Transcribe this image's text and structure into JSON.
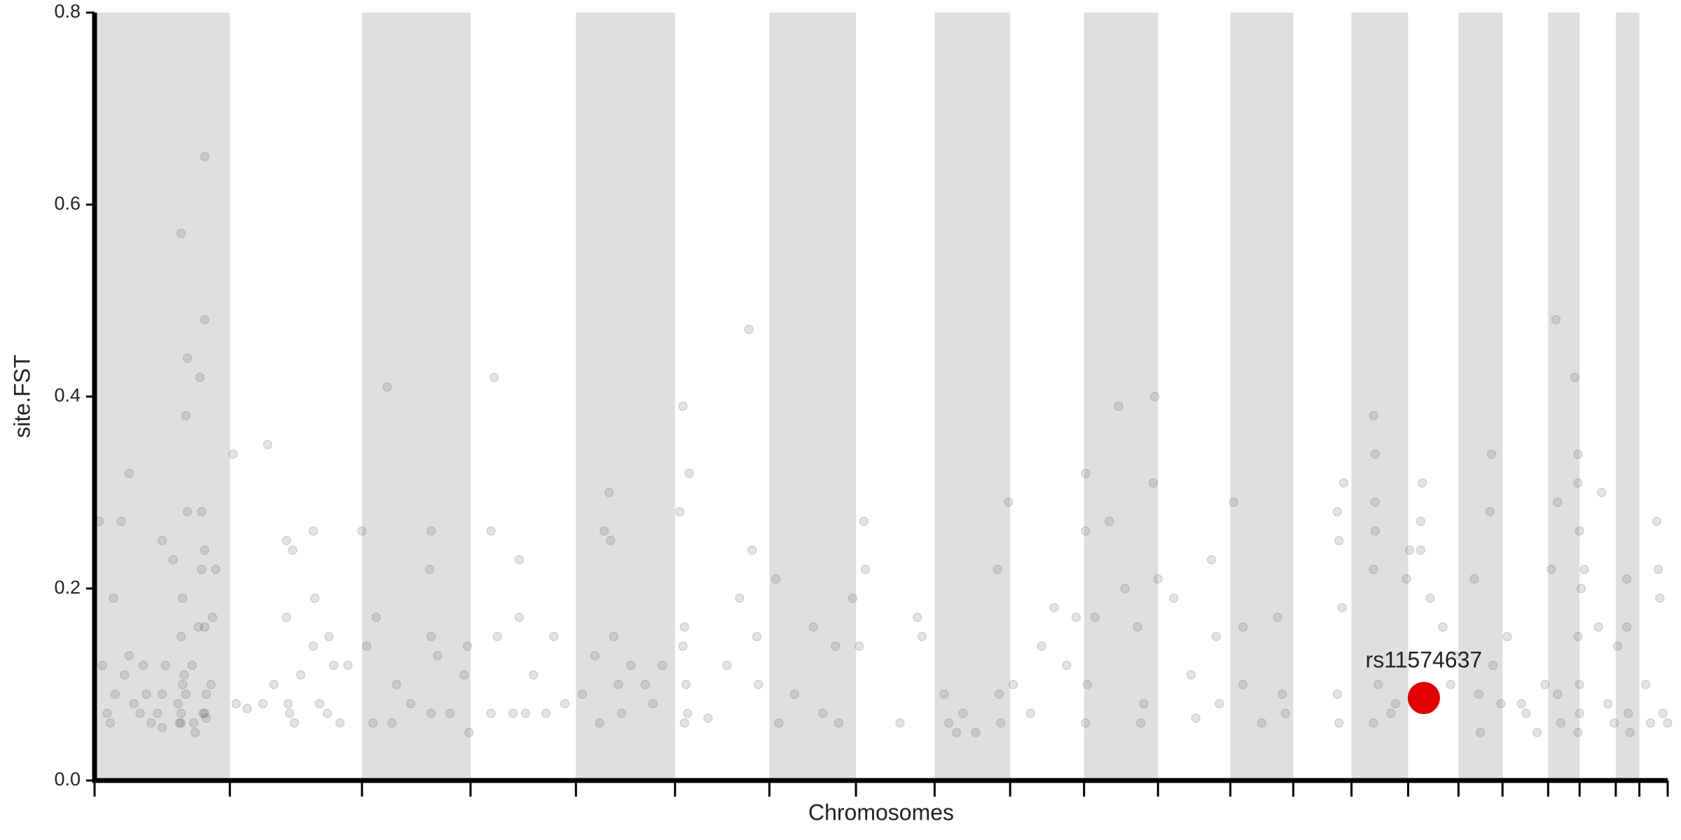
{
  "chart_data": {
    "type": "scatter",
    "y_label": "site.FST",
    "x_label": "Chromosomes",
    "xlim": [
      0,
      100
    ],
    "ylim": [
      0,
      0.8
    ],
    "yticks": [
      {
        "value": 0,
        "label": "0.0"
      },
      0.2,
      0.4,
      0.6,
      0.8
    ],
    "xticks": [
      0,
      8.6,
      17.0,
      23.9,
      30.6,
      36.9,
      42.9,
      48.4,
      53.4,
      58.2,
      62.9,
      67.6,
      72.2,
      76.2,
      79.9,
      83.5,
      86.7,
      89.5,
      92.4,
      94.4,
      96.7,
      98.2,
      100
    ],
    "bands": [
      [
        0,
        8.6
      ],
      [
        17.0,
        23.9
      ],
      [
        30.6,
        36.9
      ],
      [
        42.9,
        48.4
      ],
      [
        53.4,
        58.2
      ],
      [
        62.9,
        67.6
      ],
      [
        72.2,
        76.2
      ],
      [
        79.9,
        83.5
      ],
      [
        86.7,
        89.5
      ],
      [
        92.4,
        94.4
      ],
      [
        96.7,
        98.2
      ]
    ],
    "band_color": "#dfdfdf",
    "color": "#505050",
    "x": [
      0.3,
      0.5,
      0.8,
      1.0,
      1.2,
      1.3,
      1.7,
      1.9,
      2.2,
      2.5,
      2.9,
      3.1,
      3.3,
      3.6,
      4.0,
      4.3,
      4.3,
      4.5,
      5.0,
      5.3,
      5.5,
      5.5,
      5.4,
      4.3,
      2.2,
      5.5,
      5.6,
      5.5,
      5.6,
      5.7,
      5.8,
      5.9,
      5.8,
      5.9,
      6.2,
      6.3,
      6.4,
      6.6,
      6.7,
      6.8,
      6.8,
      6.9,
      7.0,
      7.0,
      7.0,
      7.0,
      7.1,
      7.1,
      7.0,
      7.4,
      7.7,
      7.5,
      8.8,
      9.0,
      9.7,
      11.0,
      10.7,
      11.4,
      12.2,
      12.3,
      12.2,
      12.4,
      12.6,
      12.7,
      13.1,
      13.9,
      13.9,
      14.0,
      14.3,
      14.8,
      14.9,
      15.2,
      15.6,
      16.1,
      17.0,
      17.3,
      17.7,
      17.9,
      18.6,
      18.9,
      19.2,
      20.1,
      21.4,
      21.3,
      21.4,
      21.4,
      21.8,
      22.6,
      23.5,
      23.7,
      23.8,
      25.2,
      25.2,
      25.4,
      25.6,
      26.6,
      27.0,
      27.0,
      27.4,
      27.9,
      28.7,
      29.2,
      29.9,
      31.0,
      31.8,
      32.1,
      32.4,
      32.7,
      32.8,
      33.0,
      33.3,
      33.5,
      34.1,
      35.0,
      35.5,
      36.1,
      37.2,
      37.4,
      37.5,
      37.6,
      37.5,
      37.7,
      37.8,
      37.4,
      39.0,
      40.2,
      41.6,
      41.8,
      42.1,
      42.2,
      41.0,
      43.3,
      43.5,
      44.5,
      45.7,
      46.3,
      47.1,
      47.3,
      48.2,
      48.9,
      49.0,
      48.6,
      51.2,
      52.3,
      52.6,
      54.0,
      54.3,
      54.8,
      55.2,
      56.0,
      57.5,
      57.4,
      57.6,
      58.1,
      58.4,
      59.5,
      60.2,
      61.0,
      61.8,
      62.4,
      63.0,
      63.0,
      63.1,
      63.0,
      63.6,
      64.5,
      65.1,
      65.5,
      66.3,
      66.5,
      67.4,
      67.3,
      67.6,
      66.7,
      68.6,
      69.7,
      70.0,
      71.0,
      71.3,
      71.5,
      72.4,
      73.0,
      73.0,
      74.2,
      75.2,
      75.5,
      75.7,
      79.0,
      79.1,
      79.3,
      79.4,
      79.0,
      79.1,
      81.3,
      81.4,
      81.4,
      81.4,
      81.3,
      81.6,
      81.3,
      82.4,
      82.7,
      83.4,
      83.6,
      84.4,
      84.3,
      84.3,
      84.9,
      85.7,
      86.2,
      86.5,
      87.7,
      88.0,
      88.1,
      88.8,
      88.7,
      88.9,
      89.4,
      89.8,
      90.7,
      91.0,
      91.7,
      92.2,
      92.6,
      92.9,
      93.0,
      93.0,
      93.2,
      94.1,
      94.3,
      94.3,
      94.4,
      94.5,
      94.3,
      94.4,
      94.4,
      94.3,
      94.7,
      95.8,
      95.6,
      96.2,
      96.6,
      96.8,
      97.4,
      97.4,
      97.5,
      97.6,
      98.6,
      98.9,
      99.3,
      99.4,
      99.5,
      99.7,
      100
    ],
    "values": [
      0.27,
      0.12,
      0.07,
      0.06,
      0.19,
      0.09,
      0.27,
      0.11,
      0.13,
      0.08,
      0.07,
      0.12,
      0.09,
      0.06,
      0.07,
      0.25,
      0.09,
      0.12,
      0.23,
      0.08,
      0.07,
      0.06,
      0.06,
      0.055,
      0.32,
      0.15,
      0.19,
      0.57,
      0.1,
      0.11,
      0.09,
      0.44,
      0.38,
      0.28,
      0.12,
      0.06,
      0.05,
      0.16,
      0.42,
      0.28,
      0.22,
      0.07,
      0.48,
      0.65,
      0.24,
      0.16,
      0.09,
      0.065,
      0.07,
      0.1,
      0.22,
      0.17,
      0.34,
      0.08,
      0.075,
      0.35,
      0.08,
      0.1,
      0.25,
      0.08,
      0.17,
      0.07,
      0.24,
      0.06,
      0.11,
      0.26,
      0.14,
      0.19,
      0.08,
      0.07,
      0.15,
      0.12,
      0.06,
      0.12,
      0.26,
      0.14,
      0.06,
      0.17,
      0.41,
      0.06,
      0.1,
      0.08,
      0.26,
      0.22,
      0.15,
      0.07,
      0.13,
      0.07,
      0.11,
      0.14,
      0.05,
      0.26,
      0.07,
      0.42,
      0.15,
      0.07,
      0.23,
      0.17,
      0.07,
      0.11,
      0.07,
      0.15,
      0.08,
      0.09,
      0.13,
      0.06,
      0.26,
      0.3,
      0.25,
      0.15,
      0.1,
      0.07,
      0.12,
      0.1,
      0.08,
      0.12,
      0.28,
      0.39,
      0.16,
      0.1,
      0.06,
      0.07,
      0.32,
      0.14,
      0.065,
      0.12,
      0.47,
      0.24,
      0.15,
      0.1,
      0.19,
      0.21,
      0.06,
      0.09,
      0.16,
      0.07,
      0.14,
      0.06,
      0.19,
      0.27,
      0.22,
      0.14,
      0.06,
      0.17,
      0.15,
      0.09,
      0.06,
      0.05,
      0.07,
      0.05,
      0.09,
      0.22,
      0.06,
      0.29,
      0.1,
      0.07,
      0.14,
      0.18,
      0.12,
      0.17,
      0.32,
      0.26,
      0.1,
      0.06,
      0.17,
      0.27,
      0.39,
      0.2,
      0.16,
      0.06,
      0.4,
      0.31,
      0.21,
      0.08,
      0.19,
      0.11,
      0.065,
      0.23,
      0.15,
      0.08,
      0.29,
      0.16,
      0.1,
      0.06,
      0.17,
      0.09,
      0.07,
      0.28,
      0.25,
      0.18,
      0.31,
      0.09,
      0.06,
      0.38,
      0.34,
      0.29,
      0.26,
      0.22,
      0.1,
      0.06,
      0.07,
      0.08,
      0.21,
      0.24,
      0.31,
      0.27,
      0.24,
      0.19,
      0.16,
      0.1,
      0.13,
      0.21,
      0.09,
      0.05,
      0.34,
      0.28,
      0.12,
      0.08,
      0.15,
      0.08,
      0.07,
      0.05,
      0.1,
      0.22,
      0.48,
      0.29,
      0.09,
      0.06,
      0.42,
      0.34,
      0.31,
      0.26,
      0.2,
      0.15,
      0.1,
      0.07,
      0.05,
      0.22,
      0.3,
      0.16,
      0.08,
      0.06,
      0.14,
      0.21,
      0.16,
      0.07,
      0.05,
      0.1,
      0.06,
      0.27,
      0.22,
      0.19,
      0.07,
      0.06
    ],
    "highlight": {
      "label": "rs11574637",
      "x": 84.5,
      "value": 0.086,
      "color": "#e00000"
    }
  }
}
